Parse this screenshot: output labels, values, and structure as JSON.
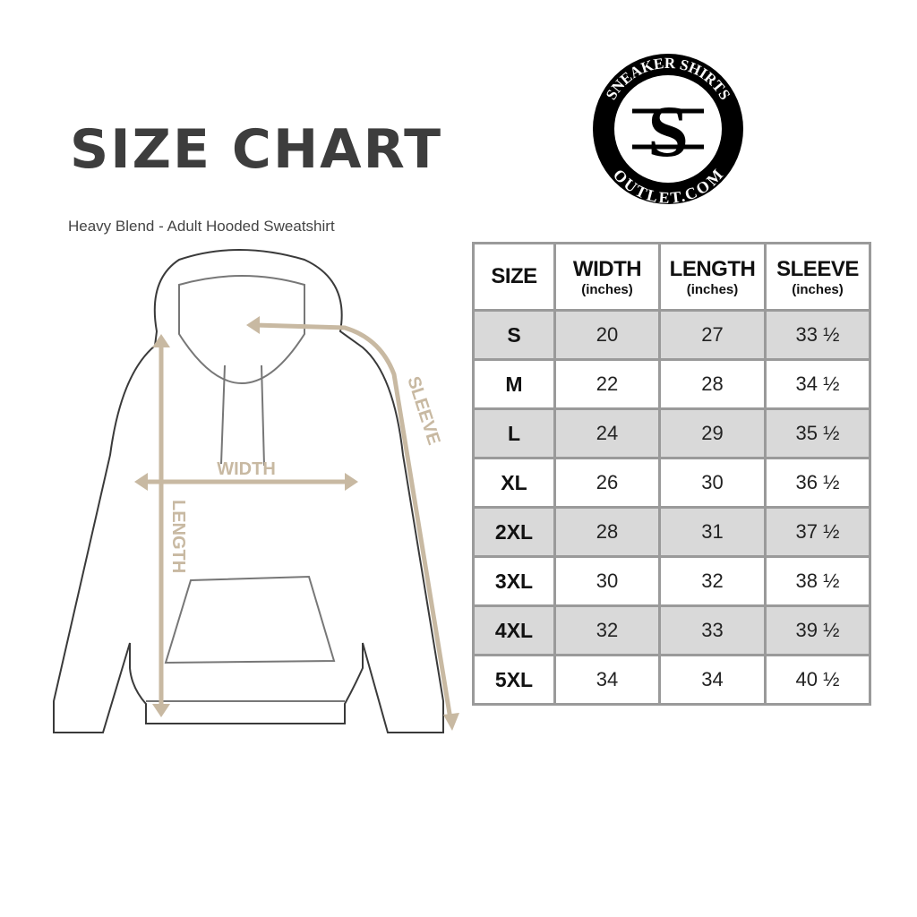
{
  "title": "SIZE CHART",
  "subtitle": "Heavy Blend - Adult Hooded Sweatshirt",
  "logo": {
    "text_top": "SNEAKER SHIRTS",
    "text_bottom": "OUTLET.COM",
    "monogram": "SS"
  },
  "diagram": {
    "labels": {
      "width": "WIDTH",
      "length": "LENGTH",
      "sleeve": "SLEEVE"
    },
    "accent_color": "#c8b9a2"
  },
  "table": {
    "headers": [
      {
        "label": "SIZE",
        "unit": ""
      },
      {
        "label": "WIDTH",
        "unit": "(inches)"
      },
      {
        "label": "LENGTH",
        "unit": "(inches)"
      },
      {
        "label": "SLEEVE",
        "unit": "(inches)"
      }
    ],
    "rows": [
      [
        "S",
        "20",
        "27",
        "33 ½"
      ],
      [
        "M",
        "22",
        "28",
        "34 ½"
      ],
      [
        "L",
        "24",
        "29",
        "35 ½"
      ],
      [
        "XL",
        "26",
        "30",
        "36 ½"
      ],
      [
        "2XL",
        "28",
        "31",
        "37 ½"
      ],
      [
        "3XL",
        "30",
        "32",
        "38 ½"
      ],
      [
        "4XL",
        "32",
        "33",
        "39 ½"
      ],
      [
        "5XL",
        "34",
        "34",
        "40 ½"
      ]
    ]
  }
}
